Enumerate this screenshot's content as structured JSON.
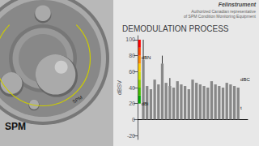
{
  "chart_data": {
    "type": "bar",
    "title": "DEMODULATION PROCESS",
    "ylabel": "dBSV",
    "categories": [
      null,
      null,
      null,
      null,
      null,
      null,
      null,
      null,
      null,
      null,
      null,
      null,
      null,
      null,
      null,
      null,
      null,
      null,
      null,
      null,
      null,
      null,
      null,
      null,
      null,
      null
    ],
    "values": [
      75,
      42,
      38,
      50,
      44,
      70,
      46,
      42,
      40,
      48,
      44,
      42,
      38,
      50,
      46,
      44,
      42,
      40,
      48,
      44,
      42,
      40,
      46,
      44,
      42,
      40
    ],
    "color": "#888888",
    "ylim": [
      -25,
      105
    ],
    "yticks": [
      100,
      80,
      60,
      40,
      20,
      0,
      -20
    ],
    "grid": false,
    "tick_labels": "y",
    "spike_tops": [
      100,
      null,
      null,
      null,
      null,
      80,
      null,
      52,
      null,
      null,
      null,
      null,
      null,
      null,
      null,
      null,
      null,
      null,
      null,
      null,
      null,
      null,
      null,
      null,
      null,
      null
    ],
    "spike_color": "#000000",
    "color_scale": {
      "ranges": [
        [
          20,
          30
        ],
        [
          30,
          40
        ],
        [
          40,
          50
        ],
        [
          50,
          60
        ],
        [
          60,
          70
        ],
        [
          70,
          80
        ],
        [
          80,
          90
        ],
        [
          90,
          100
        ]
      ],
      "colors": [
        "#00aa00",
        "#44bb00",
        "#88cc00",
        "#ccdd00",
        "#ffcc00",
        "#ff8800",
        "#ff4400",
        "#ff0000"
      ]
    },
    "annotations": [
      {
        "text": "dBN",
        "y": 78,
        "side": "left"
      },
      {
        "text": "dBC",
        "y": 50,
        "side": "right"
      },
      {
        "text": "t",
        "y": 15,
        "side": "right"
      },
      {
        "text": "dBi",
        "y": 20,
        "side": "left"
      }
    ],
    "logo": [
      "Felinstrument",
      "Authorized Canadian representative",
      "of SPM Condition Monitoring Equipment"
    ],
    "brand": "SPM"
  }
}
